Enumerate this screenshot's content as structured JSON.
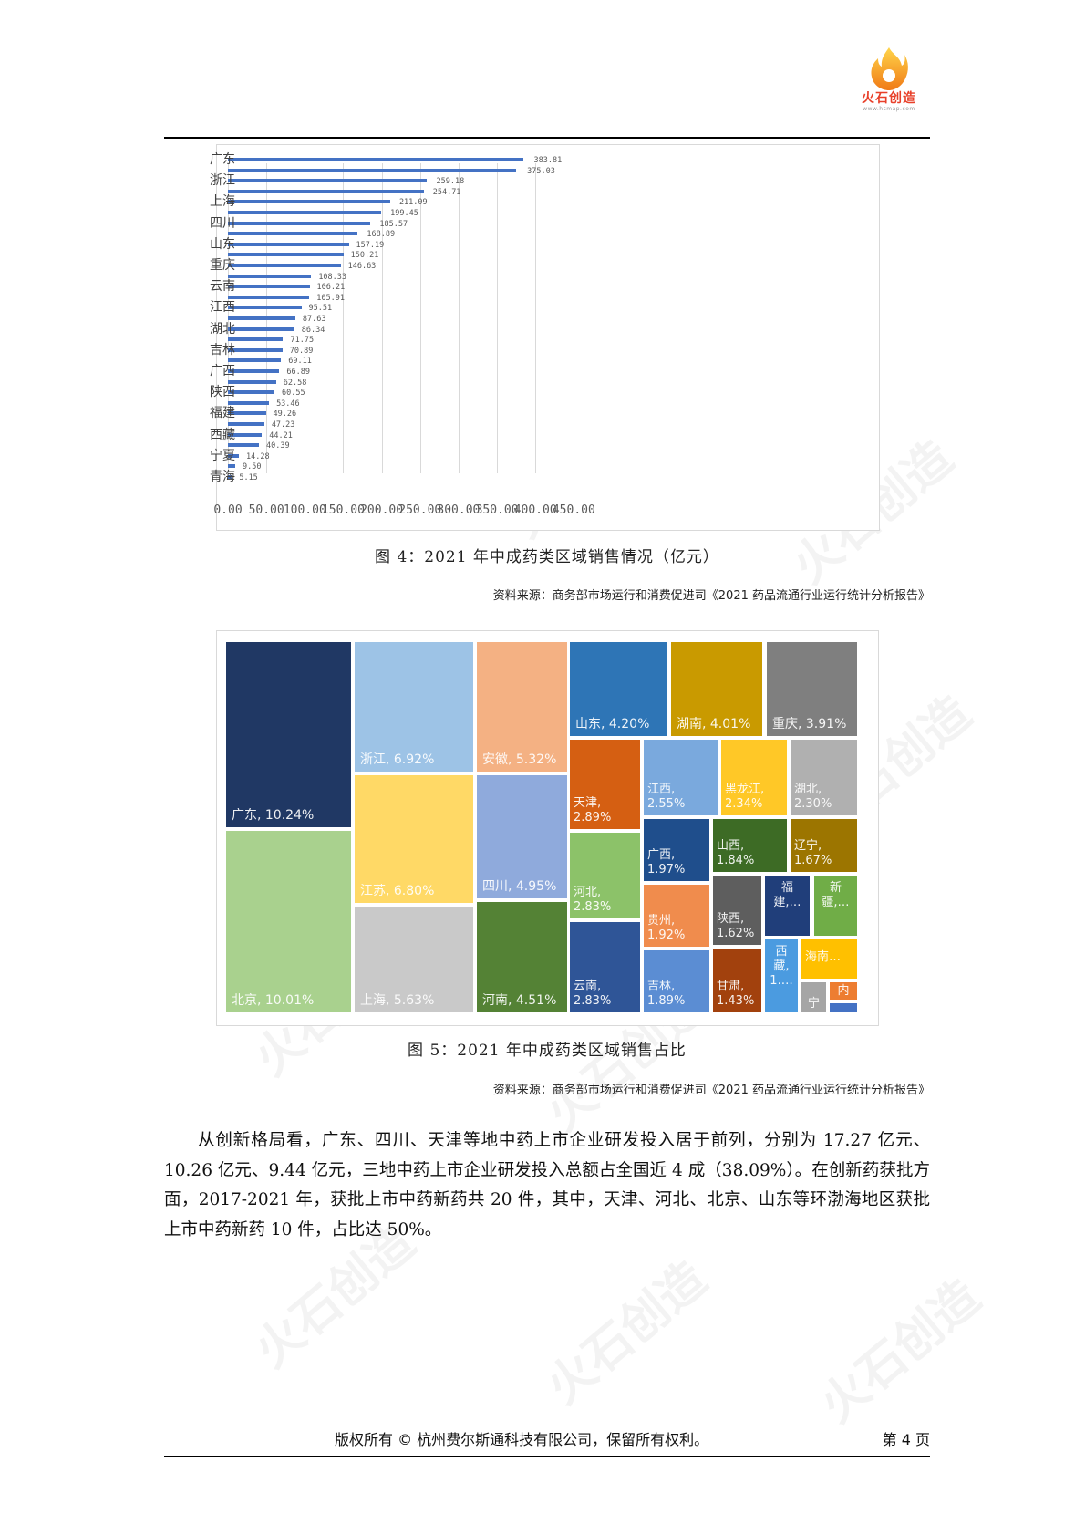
{
  "header": {
    "logo_text": "火石创造",
    "logo_url": "www.hsmap.com"
  },
  "figure4": {
    "caption": "图 4：2021 年中成药类区域销售情况（亿元）",
    "source": "资料来源：商务部市场运行和消费促进司《2021 药品流通行业运行统计分析报告》"
  },
  "chart_data": [
    {
      "type": "bar",
      "orientation": "horizontal",
      "title": "2021 年中成药类区域销售情况（亿元）",
      "xlabel": "",
      "ylabel": "",
      "xlim": [
        0,
        450
      ],
      "x_ticks": [
        "0.00",
        "50.00",
        "100.00",
        "150.00",
        "200.00",
        "250.00",
        "300.00",
        "350.00",
        "400.00",
        "450.00"
      ],
      "grid": true,
      "visible_category_labels": [
        "广东",
        "浙江",
        "上海",
        "四川",
        "山东",
        "重庆",
        "云南",
        "江西",
        "湖北",
        "吉林",
        "广西",
        "陕西",
        "福建",
        "西藏",
        "宁夏",
        "青海"
      ],
      "values": [
        383.81,
        375.03,
        259.18,
        254.71,
        211.09,
        199.45,
        185.57,
        168.89,
        157.19,
        150.21,
        146.63,
        108.33,
        106.21,
        105.91,
        95.51,
        87.63,
        86.34,
        71.75,
        70.89,
        69.11,
        66.89,
        62.58,
        60.55,
        53.46,
        49.26,
        47.23,
        44.21,
        40.39,
        14.28,
        9.5,
        5.15
      ],
      "value_labels": [
        "383.81",
        "375.03",
        "259.18",
        "254.71",
        "211.09",
        "199.45",
        "185.57",
        "168.89",
        "157.19",
        "150.21",
        "146.63",
        "108.33",
        "106.21",
        "105.91",
        "95.51",
        "87.63",
        "86.34",
        "71.75",
        "70.89",
        "69.11",
        "66.89",
        "62.58",
        "60.55",
        "53.46",
        "49.26",
        "47.23",
        "44.21",
        "40.39",
        "14.28",
        "9.50",
        "5.15"
      ],
      "bar_color": "#4472c4"
    },
    {
      "type": "treemap",
      "title": "2021 年中成药类区域销售占比",
      "items": [
        {
          "name": "广东",
          "label": "广东, 10.24%",
          "value": 10.24,
          "color": "#203864"
        },
        {
          "name": "北京",
          "label": "北京, 10.01%",
          "value": 10.01,
          "color": "#a9d18e"
        },
        {
          "name": "浙江",
          "label": "浙江, 6.92%",
          "value": 6.92,
          "color": "#9dc3e6"
        },
        {
          "name": "江苏",
          "label": "江苏, 6.80%",
          "value": 6.8,
          "color": "#ffd966"
        },
        {
          "name": "上海",
          "label": "上海, 5.63%",
          "value": 5.63,
          "color": "#c9c9c9"
        },
        {
          "name": "安徽",
          "label": "安徽, 5.32%",
          "value": 5.32,
          "color": "#f4b183"
        },
        {
          "name": "四川",
          "label": "四川, 4.95%",
          "value": 4.95,
          "color": "#8faadc"
        },
        {
          "name": "河南",
          "label": "河南, 4.51%",
          "value": 4.51,
          "color": "#548235"
        },
        {
          "name": "山东",
          "label": "山东, 4.20%",
          "value": 4.2,
          "color": "#2e75b6"
        },
        {
          "name": "湖南",
          "label": "湖南, 4.01%",
          "value": 4.01,
          "color": "#c99a00"
        },
        {
          "name": "重庆",
          "label": "重庆, 3.91%",
          "value": 3.91,
          "color": "#7f7f7f"
        },
        {
          "name": "天津",
          "label": "天津,\n2.89%",
          "value": 2.89,
          "color": "#d55f12"
        },
        {
          "name": "河北",
          "label": "河北,\n2.83%",
          "value": 2.83,
          "color": "#8cc269"
        },
        {
          "name": "云南",
          "label": "云南,\n2.83%",
          "value": 2.83,
          "color": "#2f5597"
        },
        {
          "name": "江西",
          "label": "江西,\n2.55%",
          "value": 2.55,
          "color": "#7aa9dd"
        },
        {
          "name": "黑龙江",
          "label": "黑龙江,\n2.34%",
          "value": 2.34,
          "color": "#ffc827"
        },
        {
          "name": "湖北",
          "label": "湖北,\n2.30%",
          "value": 2.3,
          "color": "#b0b0b0"
        },
        {
          "name": "广西",
          "label": "广西,\n1.97%",
          "value": 1.97,
          "color": "#1f4e8c"
        },
        {
          "name": "贵州",
          "label": "贵州,\n1.92%",
          "value": 1.92,
          "color": "#f08c4d"
        },
        {
          "name": "吉林",
          "label": "吉林,\n1.89%",
          "value": 1.89,
          "color": "#5b8dd3"
        },
        {
          "name": "山西",
          "label": "山西,\n1.84%",
          "value": 1.84,
          "color": "#3d6b25"
        },
        {
          "name": "辽宁",
          "label": "辽宁,\n1.67%",
          "value": 1.67,
          "color": "#9c7500"
        },
        {
          "name": "陕西",
          "label": "陕西,\n1.62%",
          "value": 1.62,
          "color": "#5e5e5e"
        },
        {
          "name": "甘肃",
          "label": "甘肃,\n1.43%",
          "value": 1.43,
          "color": "#a2410d"
        },
        {
          "name": "福建",
          "label": "福\n建,…",
          "value": null,
          "color": "#203e7a"
        },
        {
          "name": "新疆",
          "label": "新\n疆,…",
          "value": null,
          "color": "#70ad47"
        },
        {
          "name": "西藏",
          "label": "西\n藏,\n1.…",
          "value": null,
          "color": "#4b9be0"
        },
        {
          "name": "海南",
          "label": "海南…",
          "value": null,
          "color": "#ffc000"
        },
        {
          "name": "宁",
          "label": "宁",
          "value": null,
          "color": "#a5a5a5"
        },
        {
          "name": "内",
          "label": "内",
          "value": null,
          "color": "#ed7d31"
        },
        {
          "name": "other",
          "label": "",
          "value": null,
          "color": "#4472c4"
        }
      ]
    }
  ],
  "figure5": {
    "caption": "图 5：2021 年中成药类区域销售占比",
    "source": "资料来源：商务部市场运行和消费促进司《2021 药品流通行业运行统计分析报告》"
  },
  "body": {
    "paragraph": "从创新格局看，广东、四川、天津等地中药上市企业研发投入居于前列，分别为 17.27 亿元、10.26 亿元、9.44 亿元，三地中药上市企业研发投入总额占全国近 4 成（38.09%）。在创新药获批方面，2017-2021 年，获批上市中药新药共 20 件，其中，天津、河北、北京、山东等环渤海地区获批上市中药新药 10 件，占比达 50%。"
  },
  "footer": {
    "copyright": "版权所有 © 杭州费尔斯通科技有限公司，保留所有权利。",
    "page": "第 4 页"
  },
  "watermark": "火石创造"
}
